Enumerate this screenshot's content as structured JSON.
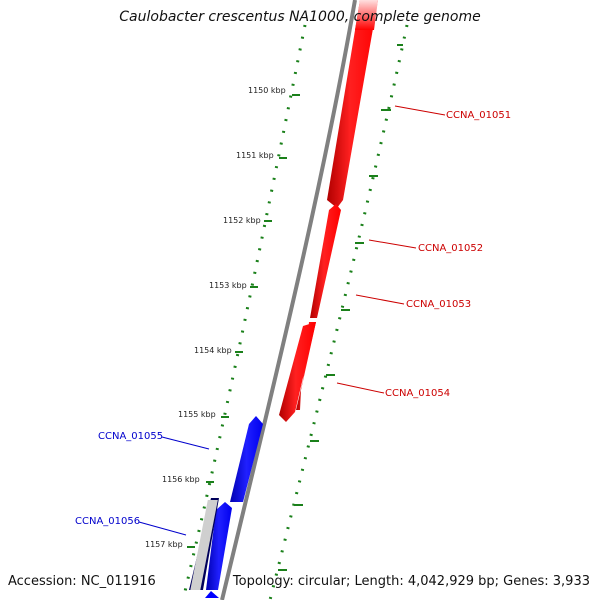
{
  "title": "Caulobacter crescentus NA1000, complete genome",
  "accession": "Accession: NC_011916",
  "topology": "Topology: circular; Length: 4,042,929 bp; Genes: 3,933",
  "colors": {
    "forward_gene": "#ff0000",
    "reverse_gene": "#0000ff",
    "reverse_gene_dark": "#000066",
    "backbone": "#808080",
    "scale_ticks": "#1a801a",
    "label_forward": "#cc0000",
    "label_reverse": "#0000cc"
  },
  "scale_labels": [
    "1150 kbp",
    "1151 kbp",
    "1152 kbp",
    "1153 kbp",
    "1154 kbp",
    "1155 kbp",
    "1156 kbp",
    "1157 kbp"
  ],
  "gene_labels": [
    {
      "label": "CCNA_01051",
      "strand": "forward"
    },
    {
      "label": "CCNA_01052",
      "strand": "forward"
    },
    {
      "label": "CCNA_01053",
      "strand": "forward"
    },
    {
      "label": "CCNA_01054",
      "strand": "forward"
    },
    {
      "label": "CCNA_01055",
      "strand": "reverse"
    },
    {
      "label": "CCNA_01056",
      "strand": "reverse"
    }
  ]
}
